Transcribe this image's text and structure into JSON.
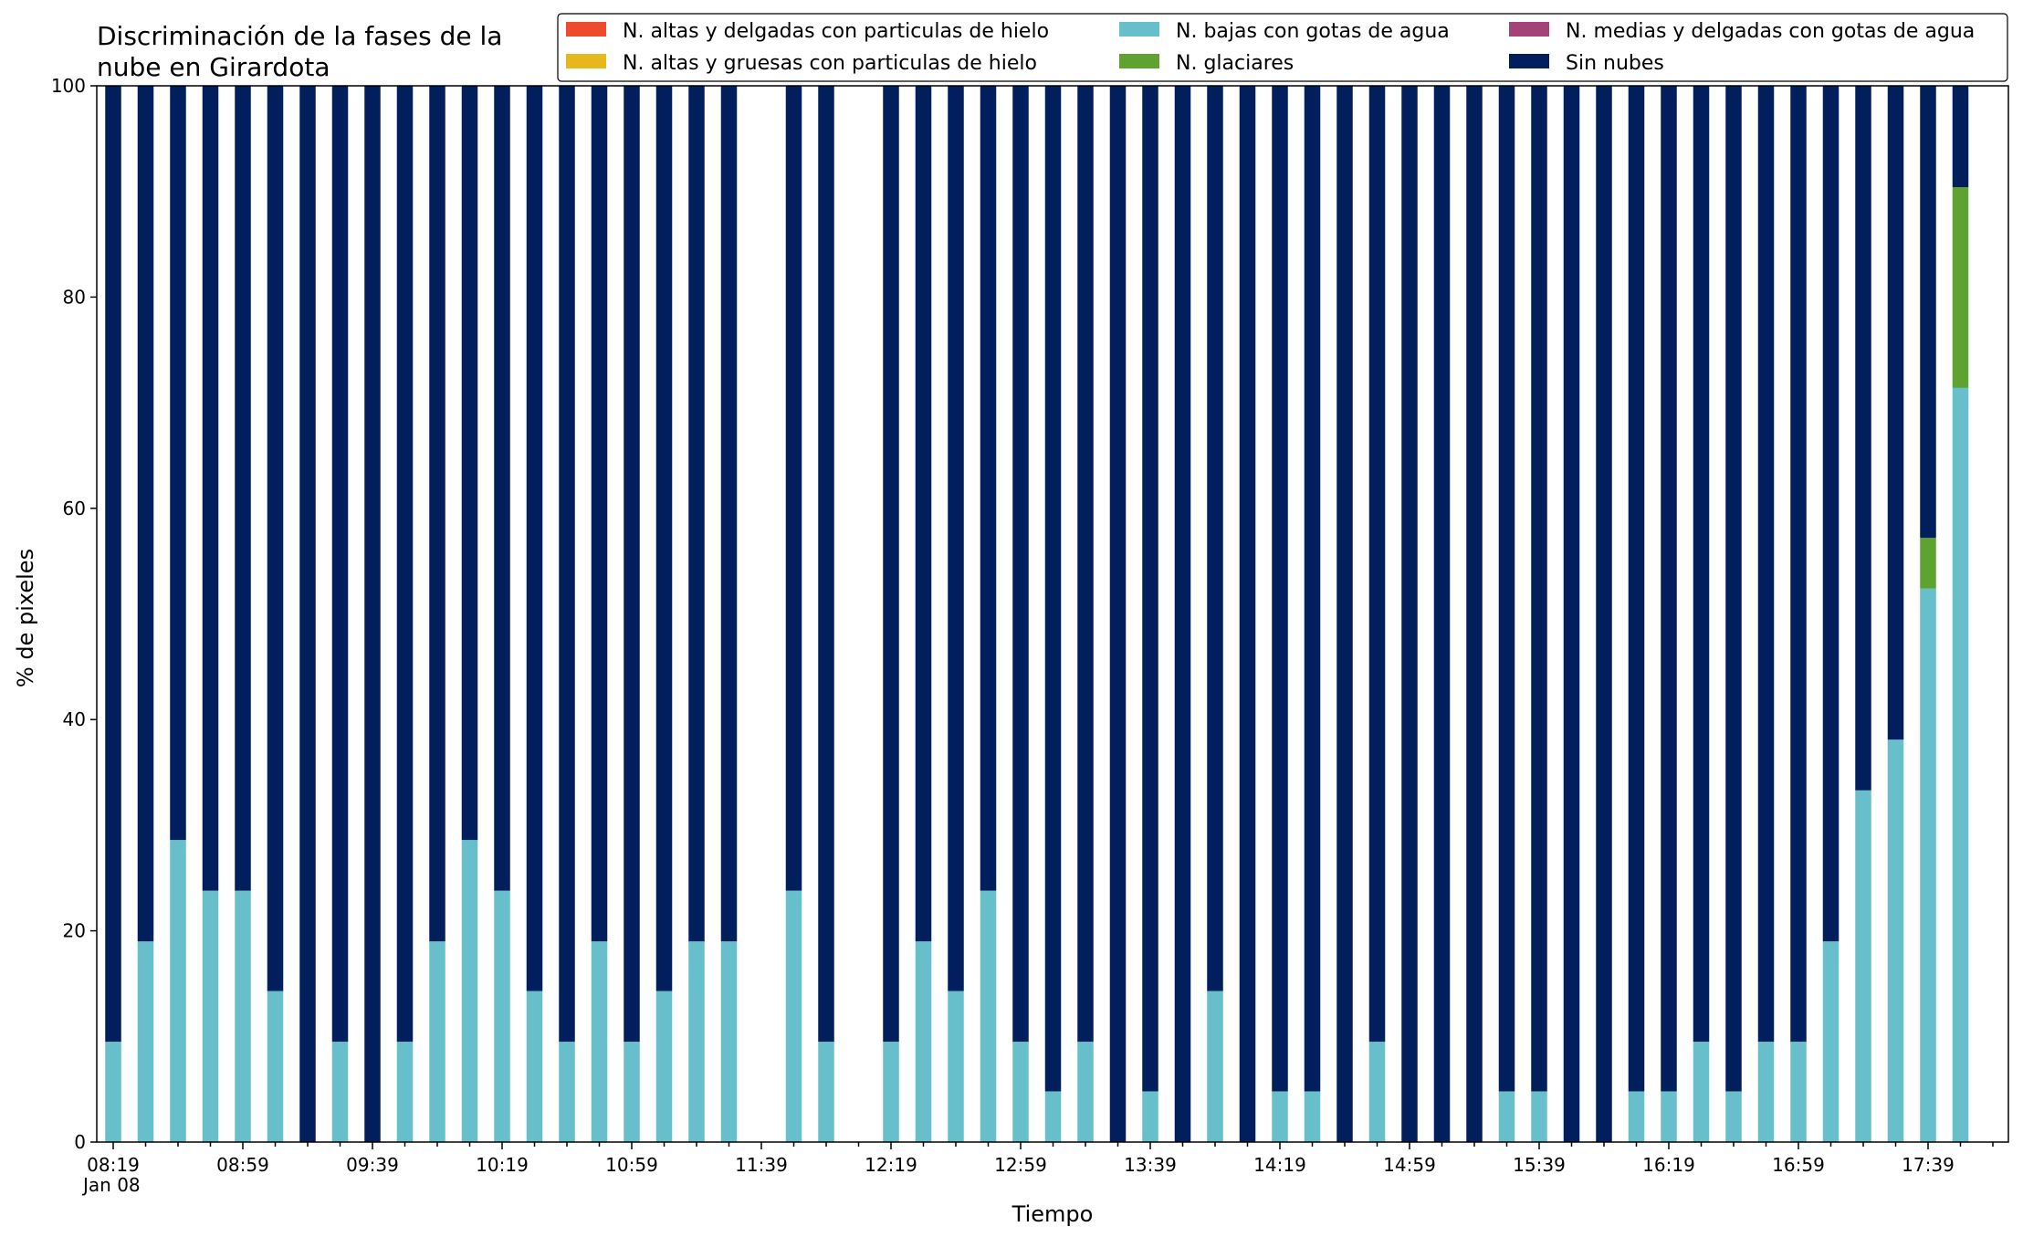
{
  "chart_data": {
    "type": "bar",
    "stacked": true,
    "title_lines": [
      "Discriminación de la fases de la",
      "nube en Girardota"
    ],
    "xlabel": "Tiempo",
    "ylabel": "% de pixeles",
    "ylim": [
      0,
      100
    ],
    "yticks": [
      0,
      20,
      40,
      60,
      80,
      100
    ],
    "grid": false,
    "legend_position": "top-right",
    "legend_columns": 3,
    "x_start": "08:19",
    "x_step_minutes": 10,
    "x_count": 58,
    "x_tick_labels": [
      "08:19",
      "08:59",
      "09:39",
      "10:19",
      "10:59",
      "11:39",
      "12:19",
      "12:59",
      "13:39",
      "14:19",
      "14:59",
      "15:39",
      "16:19",
      "16:59",
      "17:39"
    ],
    "x_date_label": "Jan 08",
    "x": [
      "08:19",
      "08:29",
      "08:39",
      "08:49",
      "08:59",
      "09:09",
      "09:19",
      "09:29",
      "09:39",
      "09:49",
      "09:59",
      "10:09",
      "10:19",
      "10:29",
      "10:39",
      "10:49",
      "10:59",
      "11:09",
      "11:19",
      "11:29",
      "11:39",
      "11:49",
      "11:59",
      "12:09",
      "12:19",
      "12:29",
      "12:39",
      "12:49",
      "12:59",
      "13:09",
      "13:19",
      "13:29",
      "13:39",
      "13:49",
      "13:59",
      "14:09",
      "14:19",
      "14:29",
      "14:39",
      "14:49",
      "14:59",
      "15:09",
      "15:19",
      "15:29",
      "15:39",
      "15:49",
      "15:59",
      "16:09",
      "16:19",
      "16:29",
      "16:39",
      "16:49",
      "16:59",
      "17:09",
      "17:19",
      "17:29",
      "17:39",
      "17:49"
    ],
    "series": [
      {
        "name": "N. altas y delgadas con particulas de hielo",
        "color": "#ee4a2d",
        "values": [
          0,
          0,
          0,
          0,
          0,
          0,
          0,
          0,
          0,
          0,
          0,
          0,
          0,
          0,
          0,
          0,
          0,
          0,
          0,
          0,
          null,
          0,
          0,
          null,
          0,
          0,
          0,
          0,
          0,
          0,
          0,
          0,
          0,
          0,
          0,
          0,
          0,
          0,
          0,
          0,
          0,
          0,
          0,
          0,
          0,
          0,
          0,
          0,
          0,
          0,
          0,
          0,
          0,
          0,
          0,
          0,
          0,
          0
        ]
      },
      {
        "name": "N. altas y gruesas con particulas de hielo",
        "color": "#e6b81e",
        "values": [
          0,
          0,
          0,
          0,
          0,
          0,
          0,
          0,
          0,
          0,
          0,
          0,
          0,
          0,
          0,
          0,
          0,
          0,
          0,
          0,
          null,
          0,
          0,
          null,
          0,
          0,
          0,
          0,
          0,
          0,
          0,
          0,
          0,
          0,
          0,
          0,
          0,
          0,
          0,
          0,
          0,
          0,
          0,
          0,
          0,
          0,
          0,
          0,
          0,
          0,
          0,
          0,
          0,
          0,
          0,
          0,
          0,
          0
        ]
      },
      {
        "name": "N. bajas con gotas de agua",
        "color": "#66bfca",
        "values": [
          9.5,
          19,
          28.6,
          23.8,
          23.8,
          14.3,
          0,
          9.5,
          0,
          9.5,
          19,
          28.6,
          23.8,
          14.3,
          9.5,
          19,
          9.5,
          14.3,
          19,
          19,
          null,
          23.8,
          9.5,
          null,
          9.5,
          19,
          14.3,
          23.8,
          9.5,
          4.8,
          9.5,
          0,
          4.8,
          0,
          14.3,
          0,
          4.8,
          4.8,
          0,
          9.5,
          0,
          0,
          0,
          4.8,
          4.8,
          0,
          0,
          4.8,
          4.8,
          9.5,
          4.8,
          9.5,
          9.5,
          19,
          33.3,
          38.1,
          52.4,
          71.4
        ]
      },
      {
        "name": "N. glaciares",
        "color": "#5ea22f",
        "values": [
          0,
          0,
          0,
          0,
          0,
          0,
          0,
          0,
          0,
          0,
          0,
          0,
          0,
          0,
          0,
          0,
          0,
          0,
          0,
          0,
          null,
          0,
          0,
          null,
          0,
          0,
          0,
          0,
          0,
          0,
          0,
          0,
          0,
          0,
          0,
          0,
          0,
          0,
          0,
          0,
          0,
          0,
          0,
          0,
          0,
          0,
          0,
          0,
          0,
          0,
          0,
          0,
          0,
          0,
          0,
          0,
          4.8,
          19
        ]
      },
      {
        "name": "N. medias y delgadas con gotas de agua",
        "color": "#a3437a",
        "values": [
          0,
          0,
          0,
          0,
          0,
          0,
          0,
          0,
          0,
          0,
          0,
          0,
          0,
          0,
          0,
          0,
          0,
          0,
          0,
          0,
          null,
          0,
          0,
          null,
          0,
          0,
          0,
          0,
          0,
          0,
          0,
          0,
          0,
          0,
          0,
          0,
          0,
          0,
          0,
          0,
          0,
          0,
          0,
          0,
          0,
          0,
          0,
          0,
          0,
          0,
          0,
          0,
          0,
          0,
          0,
          0,
          0,
          0
        ]
      },
      {
        "name": "Sin nubes",
        "color": "#001f5c",
        "values": [
          90.5,
          81,
          71.4,
          76.2,
          76.2,
          85.7,
          100,
          90.5,
          100,
          90.5,
          81,
          71.4,
          76.2,
          85.7,
          90.5,
          81,
          90.5,
          85.7,
          81,
          81,
          null,
          76.2,
          90.5,
          null,
          90.5,
          81,
          85.7,
          76.2,
          90.5,
          95.2,
          90.5,
          100,
          95.2,
          100,
          85.7,
          100,
          95.2,
          95.2,
          100,
          90.5,
          100,
          100,
          100,
          95.2,
          95.2,
          100,
          100,
          95.2,
          95.2,
          90.5,
          95.2,
          90.5,
          90.5,
          81,
          66.7,
          61.9,
          42.8,
          9.6
        ]
      }
    ]
  }
}
